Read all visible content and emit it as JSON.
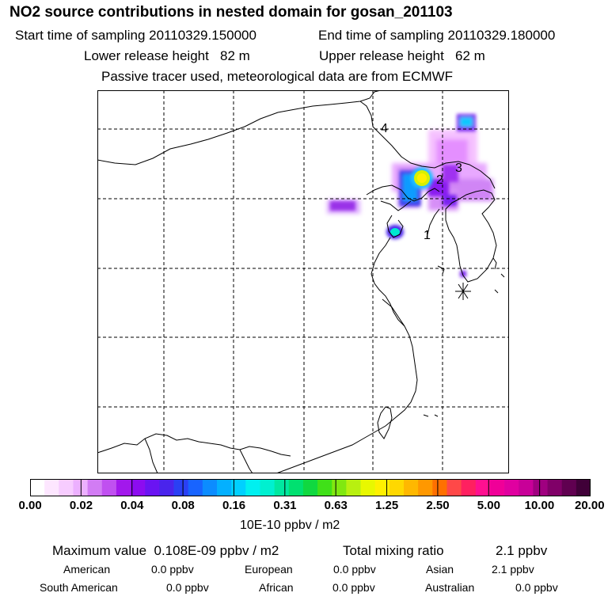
{
  "title": "NO2 source contributions in nested domain for gosan_201103",
  "header": {
    "start_label": "Start time of sampling",
    "start_value": "20110329.150000",
    "end_label": "End time of sampling",
    "end_value": "20110329.180000",
    "lower_label": "Lower release height",
    "lower_value": "82 m",
    "upper_label": "Upper release height",
    "upper_value": "62 m",
    "note": "Passive tracer used, meteorological data are from ECMWF"
  },
  "map": {
    "point_labels": [
      "1",
      "2",
      "3",
      "4"
    ],
    "receptor_marker": "asterisk-icon"
  },
  "colorbar": {
    "ticks": [
      "0.00",
      "0.02",
      "0.04",
      "0.08",
      "0.16",
      "0.31",
      "0.63",
      "1.25",
      "2.50",
      "5.00",
      "10.00",
      "20.00"
    ],
    "colors": [
      "#ffffff",
      "#fde6ff",
      "#f7ccff",
      "#ecb0ff",
      "#d27cf4",
      "#c050f0",
      "#a218ec",
      "#8c0cf0",
      "#6a14f2",
      "#4a24ec",
      "#2a40f4",
      "#1864ff",
      "#0c8cff",
      "#04b0ff",
      "#00d0ff",
      "#00f0f0",
      "#00f0d0",
      "#00e8a0",
      "#00e070",
      "#10d840",
      "#40e018",
      "#80e810",
      "#b8f010",
      "#e8f800",
      "#fff000",
      "#ffd800",
      "#ffb800",
      "#ff9800",
      "#ff7000",
      "#ff4848",
      "#ff2060",
      "#ff1090",
      "#f00098",
      "#e000a0",
      "#c80098",
      "#a00080",
      "#800068",
      "#600050",
      "#400038"
    ],
    "unit": "10E-10 ppbv / m2"
  },
  "stats": {
    "max_label": "Maximum value",
    "max_value": "0.108E-09 ppbv / m2",
    "total_label": "Total mixing ratio",
    "total_value": "2.1 ppbv"
  },
  "regions": [
    {
      "name": "American",
      "value": "0.0 ppbv"
    },
    {
      "name": "European",
      "value": "0.0 ppbv"
    },
    {
      "name": "Asian",
      "value": "2.1 ppbv"
    },
    {
      "name": "South American",
      "value": "0.0 ppbv"
    },
    {
      "name": "African",
      "value": "0.0 ppbv"
    },
    {
      "name": "Australian",
      "value": "0.0 ppbv"
    }
  ]
}
